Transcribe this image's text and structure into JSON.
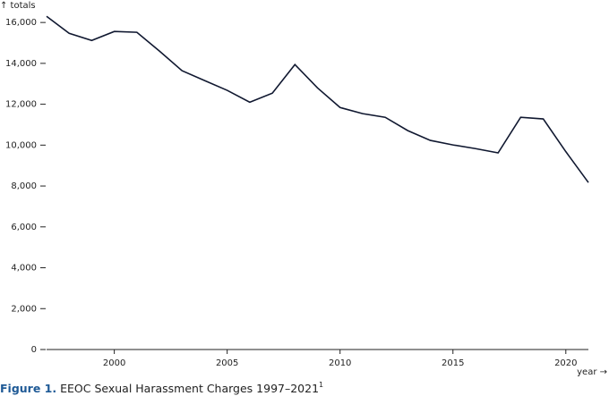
{
  "chart_data": {
    "type": "line",
    "y_label": "↑ totals",
    "x_label": "year →",
    "x": [
      1997,
      1998,
      1999,
      2000,
      2001,
      2002,
      2003,
      2004,
      2005,
      2006,
      2007,
      2008,
      2009,
      2010,
      2011,
      2012,
      2013,
      2014,
      2015,
      2016,
      2017,
      2018,
      2019,
      2020,
      2021
    ],
    "values": [
      16300,
      15470,
      15120,
      15560,
      15520,
      14600,
      13640,
      13160,
      12680,
      12100,
      12540,
      13940,
      12800,
      11840,
      11540,
      11360,
      10710,
      10230,
      10010,
      9830,
      9620,
      11360,
      11280,
      9680,
      8170
    ],
    "color": "#101830",
    "xlim": [
      1997,
      2021
    ],
    "xticks": [
      2000,
      2005,
      2010,
      2015,
      2020
    ],
    "ylim": [
      0,
      16400
    ],
    "yticks": [
      0,
      {
        "value": 2000,
        "label": "2,000"
      },
      {
        "value": 4000,
        "label": "4,000"
      },
      {
        "value": 6000,
        "label": "6,000"
      },
      {
        "value": 8000,
        "label": "8,000"
      },
      {
        "value": 10000,
        "label": "10,000"
      },
      {
        "value": 12000,
        "label": "12,000"
      },
      {
        "value": 14000,
        "label": "14,000"
      },
      {
        "value": 16000,
        "label": "16,000"
      }
    ]
  },
  "caption": {
    "label": "Figure 1.",
    "text": "EEOC Sexual Harassment Charges 1997–2021",
    "footnote": "1"
  }
}
